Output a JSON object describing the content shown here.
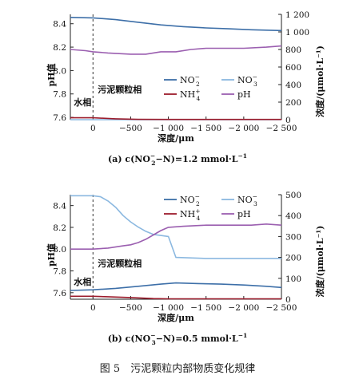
{
  "figure": {
    "caption": "图 5　污泥颗粒内部物质变化规律"
  },
  "colors": {
    "no2": "#3d6fa8",
    "no3": "#8bb8e0",
    "nh4": "#9c1c2c",
    "ph": "#9b5fb0",
    "axis": "#222222"
  },
  "chart_data": [
    {
      "type": "line",
      "panel": "a",
      "x_axis": {
        "label": "深度/μm",
        "ticks": [
          "0",
          "−500",
          "−1 000",
          "−1 500",
          "−2 000",
          "−2 500"
        ],
        "tick_values": [
          0,
          -500,
          -1000,
          -1500,
          -2000,
          -2500
        ],
        "range": [
          300,
          -2500
        ]
      },
      "y_left": {
        "label": "pH值",
        "ticks": [
          "7.6",
          "7.8",
          "8.0",
          "8.2",
          "8.4"
        ],
        "tick_values": [
          7.6,
          7.8,
          8.0,
          8.2,
          8.4
        ],
        "range": [
          7.58,
          8.48
        ]
      },
      "y_right": {
        "label": "浓度/(μmol·L⁻¹)",
        "ticks": [
          "0",
          "200",
          "400",
          "600",
          "800",
          "1 000",
          "1 200"
        ],
        "tick_values": [
          0,
          200,
          400,
          600,
          800,
          1000,
          1200
        ],
        "range": [
          0,
          1200
        ]
      },
      "interface_x": 0,
      "region_labels": {
        "water": "水相",
        "sludge": "污泥颗粒相"
      },
      "legend": [
        {
          "key": "no2",
          "base": "NO",
          "sub": "2",
          "sup": "−"
        },
        {
          "key": "no3",
          "base": "NO",
          "sub": "3",
          "sup": "−"
        },
        {
          "key": "nh4",
          "base": "NH",
          "sub": "4",
          "sup": "+"
        },
        {
          "key": "ph",
          "base": "pH",
          "sub": "",
          "sup": ""
        }
      ],
      "series": [
        {
          "key": "no2",
          "axis": "right",
          "x": [
            300,
            0,
            -300,
            -600,
            -900,
            -1200,
            -1500,
            -1800,
            -2100,
            -2500
          ],
          "y": [
            1165,
            1160,
            1140,
            1110,
            1080,
            1060,
            1045,
            1035,
            1025,
            1015
          ]
        },
        {
          "key": "no3",
          "axis": "right",
          "x": [
            300,
            -500,
            -1000,
            -1500,
            -2000,
            -2500
          ],
          "y": [
            0,
            0,
            0,
            0,
            0,
            0
          ]
        },
        {
          "key": "nh4",
          "axis": "right",
          "x": [
            300,
            0,
            -300,
            -600,
            -1000,
            -1500,
            -2000,
            -2500
          ],
          "y": [
            22,
            22,
            10,
            4,
            3,
            3,
            3,
            3
          ]
        },
        {
          "key": "ph",
          "axis": "left",
          "x": [
            300,
            100,
            0,
            -200,
            -500,
            -700,
            -900,
            -1100,
            -1300,
            -1500,
            -1700,
            -2000,
            -2300,
            -2500
          ],
          "y": [
            8.18,
            8.17,
            8.16,
            8.15,
            8.14,
            8.14,
            8.16,
            8.16,
            8.18,
            8.19,
            8.19,
            8.19,
            8.2,
            8.21
          ]
        }
      ],
      "caption_parts": {
        "pre": "(a) c(NO",
        "sub": "2",
        "sup": "−",
        "post": "−N)=1.2 mmol·L",
        "unit_sup": "−1"
      }
    },
    {
      "type": "line",
      "panel": "b",
      "x_axis": {
        "label": "深度/μm",
        "ticks": [
          "0",
          "−500",
          "−1 000",
          "−1 500",
          "−2 000",
          "−2 500"
        ],
        "tick_values": [
          0,
          -500,
          -1000,
          -1500,
          -2000,
          -2500
        ],
        "range": [
          300,
          -2500
        ]
      },
      "y_left": {
        "label": "pH值",
        "ticks": [
          "7.6",
          "7.8",
          "8.0",
          "8.2",
          "8.4"
        ],
        "tick_values": [
          7.6,
          7.8,
          8.0,
          8.2,
          8.4
        ],
        "range": [
          7.54,
          8.5
        ]
      },
      "y_right": {
        "label": "浓度/(μmol·L⁻¹)",
        "ticks": [
          "0",
          "100",
          "200",
          "300",
          "400",
          "500"
        ],
        "tick_values": [
          0,
          100,
          200,
          300,
          400,
          500
        ],
        "range": [
          0,
          500
        ]
      },
      "interface_x": 0,
      "region_labels": {
        "water": "水相",
        "sludge": "污泥颗粒相"
      },
      "legend": [
        {
          "key": "no2",
          "base": "NO",
          "sub": "2",
          "sup": "−"
        },
        {
          "key": "no3",
          "base": "NO",
          "sub": "3",
          "sup": "−"
        },
        {
          "key": "nh4",
          "base": "NH",
          "sub": "4",
          "sup": "+"
        },
        {
          "key": "ph",
          "base": "pH",
          "sub": "",
          "sup": ""
        }
      ],
      "series": [
        {
          "key": "no2",
          "axis": "right",
          "x": [
            300,
            0,
            -300,
            -600,
            -900,
            -1100,
            -1400,
            -1700,
            -2000,
            -2300,
            -2500
          ],
          "y": [
            42,
            45,
            52,
            62,
            72,
            78,
            75,
            72,
            68,
            62,
            56
          ]
        },
        {
          "key": "no3",
          "axis": "right",
          "x": [
            300,
            0,
            -100,
            -200,
            -300,
            -400,
            -500,
            -600,
            -700,
            -800,
            -900,
            -1000,
            -1100,
            -1500,
            -2000,
            -2500
          ],
          "y": [
            495,
            495,
            490,
            470,
            440,
            400,
            370,
            345,
            325,
            310,
            305,
            300,
            200,
            195,
            195,
            195
          ]
        },
        {
          "key": "nh4",
          "axis": "right",
          "x": [
            300,
            0,
            -200,
            -500,
            -800,
            -1000,
            -1500,
            -2000,
            -2500
          ],
          "y": [
            14,
            14,
            12,
            8,
            3,
            2,
            2,
            2,
            2
          ]
        },
        {
          "key": "ph",
          "axis": "left",
          "x": [
            300,
            0,
            -200,
            -400,
            -500,
            -600,
            -700,
            -800,
            -900,
            -1000,
            -1200,
            -1500,
            -1800,
            -2100,
            -2300,
            -2500
          ],
          "y": [
            8.0,
            8.0,
            8.01,
            8.03,
            8.04,
            8.06,
            8.09,
            8.13,
            8.17,
            8.2,
            8.21,
            8.22,
            8.22,
            8.22,
            8.23,
            8.22
          ]
        }
      ],
      "caption_parts": {
        "pre": "(b) c(NO",
        "sub": "3",
        "sup": "−",
        "post": "−N)=0.5 mmol·L",
        "unit_sup": "−1"
      }
    }
  ]
}
